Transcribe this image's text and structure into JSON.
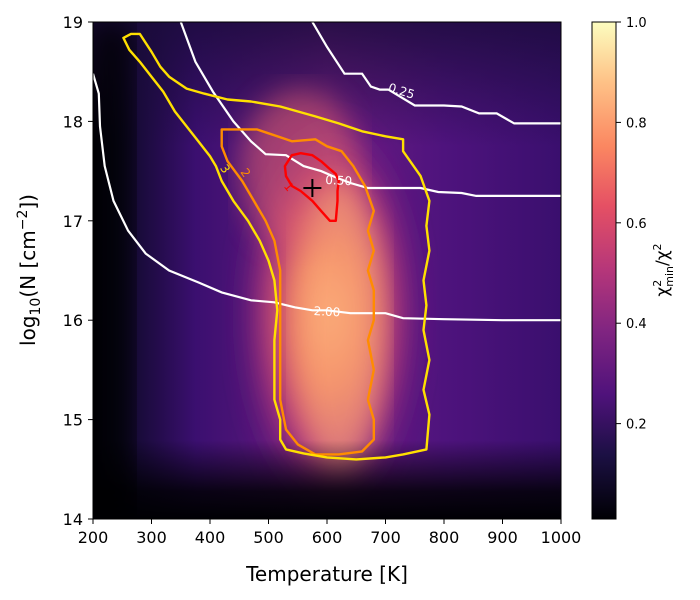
{
  "chart_data": {
    "type": "heatmap",
    "xlabel": "Temperature [K]",
    "ylabel_text": "log",
    "ylabel_sub": "10",
    "ylabel_rest": "(N [cm",
    "ylabel_sup": "−2",
    "ylabel_end": "])",
    "xlim": [
      200,
      1000
    ],
    "ylim": [
      14,
      19
    ],
    "x_ticks": [
      200,
      300,
      400,
      500,
      600,
      700,
      800,
      900,
      1000
    ],
    "y_ticks": [
      14,
      15,
      16,
      17,
      18,
      19
    ],
    "colorbar": {
      "label_main": "χ",
      "label_sub": "min",
      "label_sup": "2",
      "label_rest": "/χ",
      "label_sup2": "2",
      "ticks": [
        "0.2",
        "0.4",
        "0.6",
        "0.8",
        "1.0"
      ],
      "tick_values": [
        0.2,
        0.4,
        0.6,
        0.8,
        1.0
      ],
      "range": [
        0.01,
        1.0
      ],
      "colormap": "magma"
    },
    "best_fit": {
      "T": 575,
      "logN": 17.33
    },
    "sigma_contours": [
      {
        "level": "1",
        "color": "#ff0000",
        "points": [
          [
            528,
            17.55
          ],
          [
            540,
            17.66
          ],
          [
            555,
            17.68
          ],
          [
            575,
            17.66
          ],
          [
            590,
            17.6
          ],
          [
            605,
            17.52
          ],
          [
            615,
            17.47
          ],
          [
            620,
            17.4
          ],
          [
            618,
            17.3
          ],
          [
            618,
            17.2
          ],
          [
            615,
            17.0
          ],
          [
            605,
            17.0
          ],
          [
            590,
            17.1
          ],
          [
            575,
            17.2
          ],
          [
            555,
            17.3
          ],
          [
            540,
            17.35
          ],
          [
            530,
            17.45
          ],
          [
            528,
            17.55
          ]
        ]
      },
      {
        "level": "2",
        "color": "#ff8c00",
        "points": [
          [
            420,
            17.92
          ],
          [
            440,
            17.92
          ],
          [
            480,
            17.92
          ],
          [
            500,
            17.88
          ],
          [
            520,
            17.84
          ],
          [
            540,
            17.8
          ],
          [
            580,
            17.82
          ],
          [
            600,
            17.75
          ],
          [
            625,
            17.7
          ],
          [
            645,
            17.55
          ],
          [
            665,
            17.35
          ],
          [
            680,
            17.1
          ],
          [
            670,
            16.9
          ],
          [
            680,
            16.7
          ],
          [
            670,
            16.5
          ],
          [
            680,
            16.3
          ],
          [
            680,
            16.0
          ],
          [
            670,
            15.8
          ],
          [
            680,
            15.5
          ],
          [
            670,
            15.2
          ],
          [
            680,
            15.0
          ],
          [
            680,
            14.8
          ],
          [
            660,
            14.68
          ],
          [
            620,
            14.65
          ],
          [
            580,
            14.65
          ],
          [
            550,
            14.75
          ],
          [
            530,
            14.9
          ],
          [
            520,
            15.2
          ],
          [
            520,
            15.6
          ],
          [
            520,
            16.0
          ],
          [
            520,
            16.5
          ],
          [
            510,
            16.8
          ],
          [
            495,
            17.0
          ],
          [
            475,
            17.2
          ],
          [
            455,
            17.4
          ],
          [
            430,
            17.6
          ],
          [
            420,
            17.75
          ],
          [
            420,
            17.92
          ]
        ]
      },
      {
        "level": "3",
        "color": "#ffe000",
        "points": [
          [
            252,
            18.84
          ],
          [
            265,
            18.88
          ],
          [
            280,
            18.88
          ],
          [
            300,
            18.7
          ],
          [
            315,
            18.55
          ],
          [
            330,
            18.45
          ],
          [
            360,
            18.33
          ],
          [
            390,
            18.28
          ],
          [
            430,
            18.22
          ],
          [
            470,
            18.2
          ],
          [
            520,
            18.15
          ],
          [
            580,
            18.05
          ],
          [
            620,
            17.98
          ],
          [
            660,
            17.9
          ],
          [
            700,
            17.85
          ],
          [
            730,
            17.82
          ],
          [
            730,
            17.7
          ],
          [
            760,
            17.45
          ],
          [
            775,
            17.2
          ],
          [
            770,
            16.95
          ],
          [
            775,
            16.7
          ],
          [
            765,
            16.4
          ],
          [
            770,
            16.15
          ],
          [
            765,
            15.9
          ],
          [
            775,
            15.6
          ],
          [
            765,
            15.3
          ],
          [
            775,
            15.05
          ],
          [
            770,
            14.7
          ],
          [
            730,
            14.65
          ],
          [
            700,
            14.62
          ],
          [
            650,
            14.6
          ],
          [
            600,
            14.62
          ],
          [
            560,
            14.66
          ],
          [
            530,
            14.7
          ],
          [
            520,
            14.8
          ],
          [
            520,
            15.0
          ],
          [
            510,
            15.2
          ],
          [
            510,
            15.5
          ],
          [
            510,
            15.8
          ],
          [
            515,
            16.1
          ],
          [
            510,
            16.4
          ],
          [
            500,
            16.6
          ],
          [
            485,
            16.8
          ],
          [
            465,
            17.0
          ],
          [
            440,
            17.2
          ],
          [
            420,
            17.4
          ],
          [
            410,
            17.55
          ],
          [
            400,
            17.65
          ],
          [
            380,
            17.8
          ],
          [
            360,
            17.95
          ],
          [
            340,
            18.1
          ],
          [
            320,
            18.3
          ],
          [
            300,
            18.45
          ],
          [
            280,
            18.6
          ],
          [
            262,
            18.72
          ],
          [
            252,
            18.84
          ]
        ]
      }
    ],
    "ratio_contours": [
      {
        "label": "0.25",
        "points": [
          [
            575,
            19.0
          ],
          [
            600,
            18.75
          ],
          [
            630,
            18.48
          ],
          [
            660,
            18.48
          ],
          [
            675,
            18.35
          ],
          [
            690,
            18.32
          ],
          [
            705,
            18.32
          ],
          [
            750,
            18.16
          ],
          [
            800,
            18.16
          ],
          [
            830,
            18.15
          ],
          [
            860,
            18.08
          ],
          [
            890,
            18.08
          ],
          [
            920,
            17.98
          ],
          [
            1000,
            17.98
          ]
        ]
      },
      {
        "label": "0.50",
        "points": [
          [
            350,
            19.0
          ],
          [
            375,
            18.6
          ],
          [
            405,
            18.3
          ],
          [
            440,
            18.0
          ],
          [
            470,
            17.8
          ],
          [
            495,
            17.67
          ],
          [
            530,
            17.66
          ],
          [
            560,
            17.55
          ],
          [
            590,
            17.5
          ],
          [
            610,
            17.45
          ],
          [
            640,
            17.38
          ],
          [
            670,
            17.33
          ],
          [
            700,
            17.33
          ],
          [
            760,
            17.33
          ],
          [
            790,
            17.29
          ],
          [
            830,
            17.28
          ],
          [
            855,
            17.25
          ],
          [
            1000,
            17.25
          ]
        ]
      },
      {
        "label": "2.00",
        "points": [
          [
            200,
            18.48
          ],
          [
            210,
            18.28
          ],
          [
            212,
            17.95
          ],
          [
            220,
            17.55
          ],
          [
            235,
            17.2
          ],
          [
            260,
            16.9
          ],
          [
            290,
            16.67
          ],
          [
            330,
            16.5
          ],
          [
            380,
            16.38
          ],
          [
            420,
            16.28
          ],
          [
            470,
            16.2
          ],
          [
            510,
            16.18
          ],
          [
            545,
            16.13
          ],
          [
            575,
            16.1
          ],
          [
            600,
            16.1
          ],
          [
            640,
            16.07
          ],
          [
            700,
            16.07
          ],
          [
            730,
            16.02
          ],
          [
            800,
            16.01
          ],
          [
            900,
            16.0
          ],
          [
            1000,
            16.0
          ]
        ]
      }
    ],
    "inline_labels": [
      {
        "text": "3",
        "color": "#ffe000",
        "x": 425,
        "y": 17.52,
        "rotate": 55
      },
      {
        "text": "2",
        "color": "#ff8c00",
        "x": 460,
        "y": 17.48,
        "rotate": 55
      },
      {
        "text": "1",
        "color": "#ff0000",
        "x": 534,
        "y": 17.34,
        "rotate": 50
      },
      {
        "text": "0.50",
        "color": "#ffffff",
        "x": 620,
        "y": 17.4,
        "rotate": 3
      },
      {
        "text": "0.25",
        "color": "#ffffff",
        "x": 727,
        "y": 18.3,
        "rotate": 17
      },
      {
        "text": "2.00",
        "color": "#ffffff",
        "x": 600,
        "y": 16.08,
        "rotate": 3
      }
    ]
  }
}
